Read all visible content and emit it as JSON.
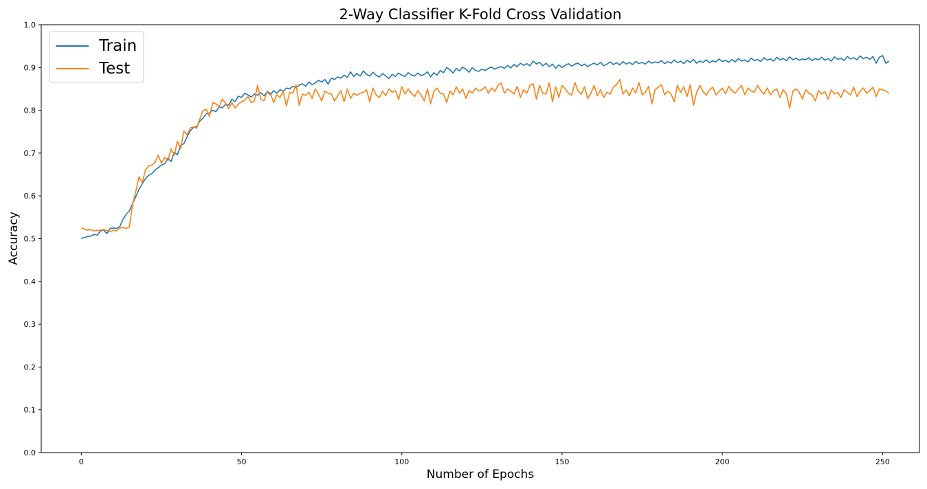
{
  "chart_data": {
    "type": "line",
    "title": "2-Way Classifier K-Fold Cross Validation",
    "xlabel": "Number of Epochs",
    "ylabel": "Accuracy",
    "xlim": [
      -12.5,
      261.5
    ],
    "ylim": [
      0.0,
      1.0
    ],
    "xticks": [
      0,
      50,
      100,
      150,
      200,
      250
    ],
    "xtick_labels": [
      "0",
      "50",
      "100",
      "150",
      "200",
      "250"
    ],
    "yticks": [
      0.0,
      0.1,
      0.2,
      0.3,
      0.4,
      0.5,
      0.6,
      0.7,
      0.8,
      0.9,
      1.0
    ],
    "ytick_labels": [
      "0.0",
      "0.1",
      "0.2",
      "0.3",
      "0.4",
      "0.5",
      "0.6",
      "0.7",
      "0.8",
      "0.9",
      "1.0"
    ],
    "grid": false,
    "legend_position": "top-left",
    "x_start": 0,
    "x_step": 1,
    "series": [
      {
        "name": "Train",
        "color": "#1f77b4",
        "values": [
          0.5,
          0.503,
          0.505,
          0.506,
          0.51,
          0.508,
          0.518,
          0.52,
          0.512,
          0.524,
          0.525,
          0.524,
          0.528,
          0.545,
          0.557,
          0.565,
          0.582,
          0.598,
          0.615,
          0.628,
          0.64,
          0.648,
          0.652,
          0.66,
          0.666,
          0.672,
          0.675,
          0.688,
          0.68,
          0.702,
          0.696,
          0.718,
          0.722,
          0.738,
          0.752,
          0.76,
          0.762,
          0.775,
          0.782,
          0.792,
          0.794,
          0.8,
          0.797,
          0.808,
          0.806,
          0.814,
          0.812,
          0.826,
          0.82,
          0.833,
          0.83,
          0.84,
          0.836,
          0.831,
          0.838,
          0.835,
          0.841,
          0.834,
          0.843,
          0.836,
          0.846,
          0.84,
          0.848,
          0.845,
          0.852,
          0.85,
          0.856,
          0.853,
          0.859,
          0.862,
          0.856,
          0.866,
          0.86,
          0.864,
          0.87,
          0.866,
          0.872,
          0.861,
          0.875,
          0.872,
          0.878,
          0.875,
          0.882,
          0.877,
          0.89,
          0.879,
          0.886,
          0.88,
          0.892,
          0.884,
          0.88,
          0.889,
          0.882,
          0.878,
          0.886,
          0.88,
          0.874,
          0.884,
          0.879,
          0.887,
          0.882,
          0.879,
          0.888,
          0.883,
          0.88,
          0.887,
          0.881,
          0.884,
          0.89,
          0.878,
          0.888,
          0.882,
          0.893,
          0.888,
          0.9,
          0.895,
          0.887,
          0.898,
          0.892,
          0.901,
          0.896,
          0.889,
          0.9,
          0.893,
          0.891,
          0.896,
          0.893,
          0.898,
          0.901,
          0.896,
          0.9,
          0.902,
          0.898,
          0.905,
          0.899,
          0.907,
          0.902,
          0.91,
          0.905,
          0.909,
          0.904,
          0.915,
          0.908,
          0.912,
          0.904,
          0.91,
          0.902,
          0.908,
          0.898,
          0.906,
          0.9,
          0.905,
          0.909,
          0.903,
          0.908,
          0.91,
          0.904,
          0.908,
          0.902,
          0.907,
          0.91,
          0.906,
          0.912,
          0.904,
          0.908,
          0.913,
          0.907,
          0.911,
          0.906,
          0.914,
          0.908,
          0.912,
          0.907,
          0.914,
          0.909,
          0.912,
          0.908,
          0.915,
          0.91,
          0.913,
          0.911,
          0.916,
          0.909,
          0.914,
          0.91,
          0.918,
          0.911,
          0.915,
          0.909,
          0.917,
          0.912,
          0.919,
          0.91,
          0.915,
          0.912,
          0.918,
          0.911,
          0.916,
          0.913,
          0.92,
          0.914,
          0.917,
          0.912,
          0.919,
          0.913,
          0.921,
          0.915,
          0.918,
          0.913,
          0.922,
          0.916,
          0.919,
          0.914,
          0.923,
          0.917,
          0.92,
          0.915,
          0.924,
          0.918,
          0.921,
          0.916,
          0.925,
          0.918,
          0.922,
          0.917,
          0.92,
          0.918,
          0.923,
          0.916,
          0.921,
          0.918,
          0.924,
          0.917,
          0.921,
          0.915,
          0.925,
          0.919,
          0.922,
          0.916,
          0.926,
          0.92,
          0.923,
          0.918,
          0.927,
          0.921,
          0.924,
          0.919,
          0.926,
          0.91,
          0.924,
          0.928,
          0.91,
          0.915
        ]
      },
      {
        "name": "Test",
        "color": "#ff7f0e",
        "values": [
          0.525,
          0.522,
          0.52,
          0.521,
          0.518,
          0.519,
          0.52,
          0.521,
          0.519,
          0.516,
          0.52,
          0.518,
          0.525,
          0.526,
          0.524,
          0.527,
          0.58,
          0.61,
          0.645,
          0.63,
          0.66,
          0.67,
          0.672,
          0.678,
          0.695,
          0.676,
          0.69,
          0.682,
          0.71,
          0.695,
          0.728,
          0.71,
          0.752,
          0.742,
          0.759,
          0.761,
          0.758,
          0.78,
          0.8,
          0.802,
          0.785,
          0.818,
          0.815,
          0.808,
          0.826,
          0.817,
          0.804,
          0.818,
          0.805,
          0.814,
          0.82,
          0.824,
          0.832,
          0.818,
          0.822,
          0.858,
          0.826,
          0.822,
          0.845,
          0.84,
          0.818,
          0.836,
          0.83,
          0.845,
          0.81,
          0.842,
          0.84,
          0.86,
          0.812,
          0.838,
          0.835,
          0.842,
          0.828,
          0.85,
          0.838,
          0.822,
          0.845,
          0.84,
          0.838,
          0.822,
          0.834,
          0.846,
          0.82,
          0.85,
          0.828,
          0.84,
          0.835,
          0.84,
          0.842,
          0.848,
          0.82,
          0.852,
          0.836,
          0.83,
          0.845,
          0.834,
          0.85,
          0.842,
          0.846,
          0.825,
          0.855,
          0.838,
          0.85,
          0.84,
          0.832,
          0.846,
          0.836,
          0.822,
          0.85,
          0.815,
          0.844,
          0.852,
          0.84,
          0.838,
          0.818,
          0.845,
          0.836,
          0.855,
          0.84,
          0.85,
          0.828,
          0.846,
          0.84,
          0.852,
          0.845,
          0.848,
          0.855,
          0.84,
          0.852,
          0.844,
          0.858,
          0.864,
          0.84,
          0.85,
          0.845,
          0.838,
          0.856,
          0.83,
          0.848,
          0.84,
          0.858,
          0.862,
          0.826,
          0.858,
          0.84,
          0.838,
          0.864,
          0.82,
          0.855,
          0.83,
          0.858,
          0.85,
          0.84,
          0.835,
          0.865,
          0.845,
          0.838,
          0.855,
          0.828,
          0.84,
          0.858,
          0.834,
          0.848,
          0.83,
          0.842,
          0.838,
          0.854,
          0.86,
          0.872,
          0.838,
          0.848,
          0.834,
          0.852,
          0.84,
          0.865,
          0.836,
          0.842,
          0.856,
          0.815,
          0.848,
          0.854,
          0.86,
          0.836,
          0.845,
          0.838,
          0.82,
          0.858,
          0.842,
          0.855,
          0.832,
          0.86,
          0.812,
          0.842,
          0.858,
          0.844,
          0.835,
          0.848,
          0.854,
          0.836,
          0.844,
          0.852,
          0.838,
          0.856,
          0.846,
          0.84,
          0.85,
          0.858,
          0.836,
          0.852,
          0.845,
          0.842,
          0.858,
          0.846,
          0.838,
          0.852,
          0.836,
          0.846,
          0.85,
          0.83,
          0.848,
          0.838,
          0.805,
          0.845,
          0.85,
          0.842,
          0.826,
          0.848,
          0.84,
          0.836,
          0.822,
          0.846,
          0.838,
          0.844,
          0.826,
          0.848,
          0.838,
          0.842,
          0.83,
          0.848,
          0.842,
          0.836,
          0.854,
          0.832,
          0.845,
          0.852,
          0.84,
          0.846,
          0.854,
          0.832,
          0.85,
          0.848,
          0.845,
          0.84
        ]
      }
    ]
  }
}
